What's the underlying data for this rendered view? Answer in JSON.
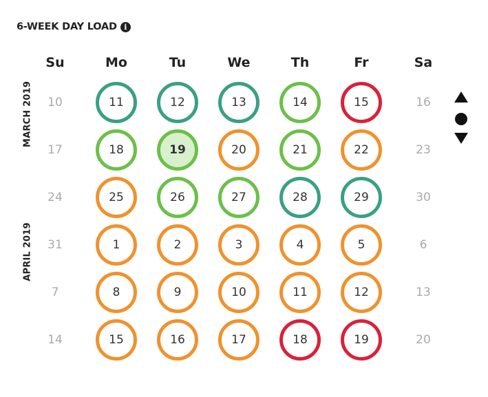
{
  "widget": {
    "title": "6-WEEK DAY LOAD",
    "info_icon": "info-circle-icon"
  },
  "weekdays": [
    "Su",
    "Mo",
    "Tu",
    "We",
    "Th",
    "Fr",
    "Sa"
  ],
  "months": [
    "MARCH 2019",
    "APRIL 2019"
  ],
  "load_colors": {
    "teal": "#3aa083",
    "green": "#6cc04a",
    "orange": "#f0922e",
    "red": "#d9223b",
    "today_fill": "#d8f0cc"
  },
  "weeks": [
    [
      {
        "d": "10",
        "c": ""
      },
      {
        "d": "11",
        "c": "teal"
      },
      {
        "d": "12",
        "c": "teal"
      },
      {
        "d": "13",
        "c": "teal"
      },
      {
        "d": "14",
        "c": "green"
      },
      {
        "d": "15",
        "c": "red"
      },
      {
        "d": "16",
        "c": ""
      }
    ],
    [
      {
        "d": "17",
        "c": ""
      },
      {
        "d": "18",
        "c": "green"
      },
      {
        "d": "19",
        "c": "green",
        "today": true
      },
      {
        "d": "20",
        "c": "orange"
      },
      {
        "d": "21",
        "c": "green"
      },
      {
        "d": "22",
        "c": "orange"
      },
      {
        "d": "23",
        "c": ""
      }
    ],
    [
      {
        "d": "24",
        "c": ""
      },
      {
        "d": "25",
        "c": "orange"
      },
      {
        "d": "26",
        "c": "green"
      },
      {
        "d": "27",
        "c": "green"
      },
      {
        "d": "28",
        "c": "teal"
      },
      {
        "d": "29",
        "c": "teal"
      },
      {
        "d": "30",
        "c": ""
      }
    ],
    [
      {
        "d": "31",
        "c": ""
      },
      {
        "d": "1",
        "c": "orange"
      },
      {
        "d": "2",
        "c": "orange"
      },
      {
        "d": "3",
        "c": "orange"
      },
      {
        "d": "4",
        "c": "orange"
      },
      {
        "d": "5",
        "c": "orange"
      },
      {
        "d": "6",
        "c": ""
      }
    ],
    [
      {
        "d": "7",
        "c": ""
      },
      {
        "d": "8",
        "c": "orange"
      },
      {
        "d": "9",
        "c": "orange"
      },
      {
        "d": "10",
        "c": "orange"
      },
      {
        "d": "11",
        "c": "orange"
      },
      {
        "d": "12",
        "c": "orange"
      },
      {
        "d": "13",
        "c": ""
      }
    ],
    [
      {
        "d": "14",
        "c": ""
      },
      {
        "d": "15",
        "c": "orange"
      },
      {
        "d": "16",
        "c": "orange"
      },
      {
        "d": "17",
        "c": "orange"
      },
      {
        "d": "18",
        "c": "red"
      },
      {
        "d": "19",
        "c": "red"
      },
      {
        "d": "20",
        "c": ""
      }
    ]
  ],
  "navigation": {
    "up_icon": "triangle-up-icon",
    "current_icon": "circle-dot-icon",
    "down_icon": "triangle-down-icon"
  }
}
